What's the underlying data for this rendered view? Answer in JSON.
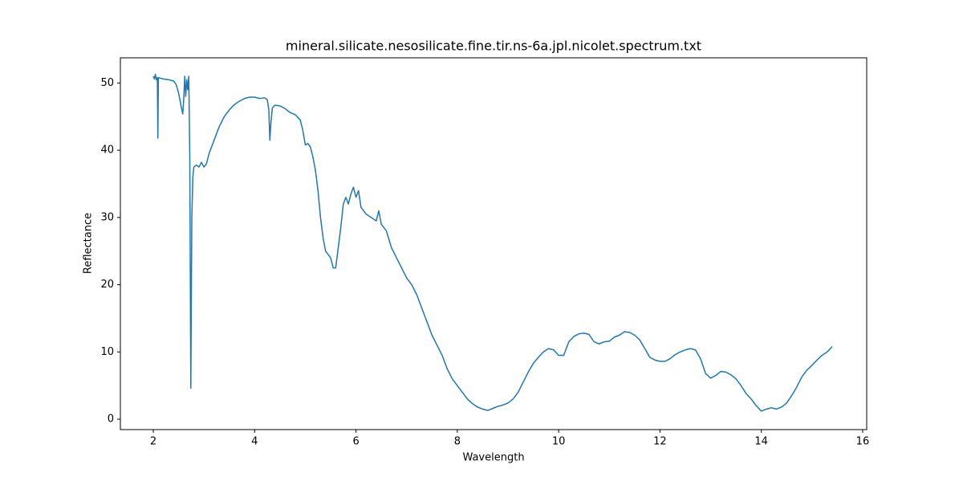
{
  "chart_data": {
    "type": "line",
    "title": "mineral.silicate.nesosilicate.fine.tir.ns-6a.jpl.nicolet.spectrum.txt",
    "x_label": "Wavelength",
    "y_label": "Reflectance",
    "xlim": [
      1.35,
      16.08
    ],
    "ylim": [
      -1.55,
      53.75
    ],
    "xticks": [
      2,
      4,
      6,
      8,
      10,
      12,
      14,
      16
    ],
    "yticks": [
      0,
      10,
      20,
      30,
      40,
      50
    ],
    "series": [
      {
        "color": "#1f77b4",
        "x": [
          2.0,
          2.02,
          2.04,
          2.06,
          2.08,
          2.09,
          2.1,
          2.2,
          2.3,
          2.4,
          2.45,
          2.5,
          2.55,
          2.58,
          2.6,
          2.62,
          2.64,
          2.66,
          2.68,
          2.7,
          2.72,
          2.74,
          2.76,
          2.78,
          2.8,
          2.85,
          2.9,
          2.95,
          3.0,
          3.05,
          3.1,
          3.2,
          3.3,
          3.4,
          3.5,
          3.6,
          3.7,
          3.8,
          3.9,
          4.0,
          4.1,
          4.2,
          4.25,
          4.28,
          4.3,
          4.32,
          4.35,
          4.4,
          4.5,
          4.6,
          4.7,
          4.8,
          4.9,
          4.95,
          5.0,
          5.05,
          5.1,
          5.15,
          5.2,
          5.25,
          5.3,
          5.35,
          5.4,
          5.45,
          5.5,
          5.55,
          5.6,
          5.65,
          5.7,
          5.75,
          5.8,
          5.85,
          5.9,
          5.95,
          6.0,
          6.05,
          6.1,
          6.2,
          6.3,
          6.4,
          6.45,
          6.5,
          6.6,
          6.7,
          6.8,
          6.9,
          7.0,
          7.1,
          7.2,
          7.3,
          7.4,
          7.5,
          7.6,
          7.7,
          7.8,
          7.9,
          8.0,
          8.1,
          8.2,
          8.3,
          8.4,
          8.5,
          8.6,
          8.7,
          8.8,
          8.9,
          9.0,
          9.1,
          9.2,
          9.3,
          9.4,
          9.5,
          9.6,
          9.7,
          9.8,
          9.9,
          10.0,
          10.1,
          10.2,
          10.3,
          10.4,
          10.5,
          10.6,
          10.7,
          10.8,
          10.9,
          11.0,
          11.1,
          11.2,
          11.3,
          11.4,
          11.5,
          11.6,
          11.7,
          11.8,
          11.9,
          12.0,
          12.1,
          12.2,
          12.3,
          12.4,
          12.5,
          12.6,
          12.7,
          12.8,
          12.9,
          13.0,
          13.1,
          13.2,
          13.3,
          13.4,
          13.5,
          13.6,
          13.7,
          13.8,
          13.9,
          14.0,
          14.1,
          14.2,
          14.3,
          14.4,
          14.5,
          14.6,
          14.7,
          14.8,
          14.9,
          15.0,
          15.1,
          15.2,
          15.3,
          15.4
        ],
        "values": [
          51.0,
          50.6,
          51.3,
          50.5,
          50.8,
          41.8,
          50.8,
          50.6,
          50.5,
          50.3,
          49.8,
          48.5,
          46.5,
          45.4,
          47.5,
          51.0,
          48.0,
          50.5,
          49.0,
          51.0,
          39.0,
          4.6,
          30.0,
          36.0,
          37.5,
          37.8,
          37.5,
          38.2,
          37.5,
          38.0,
          39.5,
          41.5,
          43.5,
          45.0,
          46.0,
          46.8,
          47.3,
          47.7,
          47.9,
          47.9,
          47.7,
          47.8,
          47.5,
          46.0,
          41.5,
          44.0,
          46.3,
          46.7,
          46.6,
          46.2,
          45.6,
          45.3,
          44.5,
          43.0,
          40.8,
          41.0,
          40.5,
          39.0,
          37.0,
          34.0,
          30.0,
          27.0,
          25.0,
          24.5,
          24.0,
          22.5,
          22.5,
          25.5,
          28.5,
          32.0,
          33.0,
          32.0,
          33.5,
          34.5,
          33.0,
          34.0,
          31.5,
          30.5,
          30.0,
          29.5,
          31.0,
          29.0,
          28.0,
          25.5,
          24.0,
          22.5,
          21.0,
          20.0,
          18.5,
          16.5,
          14.5,
          12.5,
          11.0,
          9.5,
          7.5,
          6.0,
          5.0,
          4.0,
          3.0,
          2.3,
          1.8,
          1.5,
          1.3,
          1.6,
          1.9,
          2.1,
          2.4,
          3.0,
          4.0,
          5.5,
          7.0,
          8.3,
          9.2,
          10.0,
          10.5,
          10.3,
          9.5,
          9.5,
          11.5,
          12.3,
          12.7,
          12.8,
          12.6,
          11.5,
          11.2,
          11.5,
          11.6,
          12.2,
          12.5,
          13.0,
          12.9,
          12.5,
          11.8,
          10.5,
          9.2,
          8.8,
          8.6,
          8.6,
          9.0,
          9.6,
          10.0,
          10.3,
          10.5,
          10.3,
          9.0,
          6.8,
          6.1,
          6.5,
          7.1,
          7.0,
          6.6,
          6.0,
          5.0,
          3.8,
          3.0,
          2.0,
          1.2,
          1.5,
          1.7,
          1.5,
          1.8,
          2.4,
          3.5,
          4.8,
          6.3,
          7.3,
          8.0,
          8.8,
          9.5,
          10.0,
          10.8
        ]
      }
    ]
  }
}
